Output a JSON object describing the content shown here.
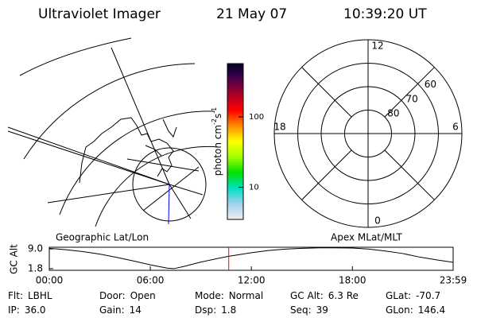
{
  "header": {
    "title": "Ultraviolet Imager",
    "date": "21 May 07",
    "time": "10:39:20 UT"
  },
  "map": {
    "label": "Geographic Lat/Lon"
  },
  "colorbar": {
    "label": [
      "photon cm",
      "-2",
      "s",
      "-1"
    ],
    "scale": "log",
    "clim": [
      3.5,
      570
    ],
    "ticks": [
      10,
      100
    ]
  },
  "polar": {
    "label": "Apex MLat/MLT",
    "lat_min": 50,
    "lat_rings": [
      60,
      70,
      80
    ],
    "mlt_labels": [
      12,
      18,
      6,
      0
    ]
  },
  "altitude": {
    "ylabel": "GC Alt",
    "ylim": [
      1.2,
      9.6
    ],
    "yticks": [
      {
        "value": 9.0,
        "label": "9.0"
      },
      1.8
    ],
    "xlim": [
      0,
      23.983
    ],
    "xticks": [
      {
        "value": 0,
        "label": "00:00"
      },
      {
        "value": 6,
        "label": "06:00"
      },
      {
        "value": 12,
        "label": "12:00"
      },
      {
        "value": 18,
        "label": "18:00"
      },
      {
        "value": 23.983,
        "label": "23:59"
      }
    ],
    "x": [
      0,
      1,
      2,
      3,
      4,
      5,
      6,
      7,
      7.4,
      8,
      9,
      10,
      10.656,
      12,
      13,
      14,
      15,
      16,
      17,
      18,
      19,
      20,
      21,
      22,
      23,
      23.983
    ],
    "values": [
      9.2,
      8.7,
      8.0,
      7.1,
      5.9,
      4.6,
      3.2,
      2.0,
      1.8,
      2.6,
      4.2,
      5.5,
      6.3,
      7.6,
      8.4,
      8.9,
      9.2,
      9.4,
      9.4,
      9.3,
      8.9,
      8.2,
      7.3,
      6.0,
      5.0,
      4.1
    ],
    "marker_x": 10.656,
    "marker_color": "#ff0000",
    "line_color": "#000000"
  },
  "info": [
    [
      {
        "key": "Flt:",
        "value": "LBHL"
      },
      {
        "key": "IP:",
        "value": "36.0"
      }
    ],
    [
      {
        "key": "Door:",
        "value": "Open"
      },
      {
        "key": "Gain:",
        "value": "14"
      }
    ],
    [
      {
        "key": "Mode:",
        "value": "Normal"
      },
      {
        "key": "Dsp:",
        "value": "1.8"
      }
    ],
    [
      {
        "key": "GC Alt:",
        "value": "6.3 Re"
      },
      {
        "key": "Seq:",
        "value": "39"
      }
    ],
    [
      {
        "key": "GLat:",
        "value": "-70.7"
      },
      {
        "key": "GLon:",
        "value": "146.4"
      }
    ]
  ]
}
